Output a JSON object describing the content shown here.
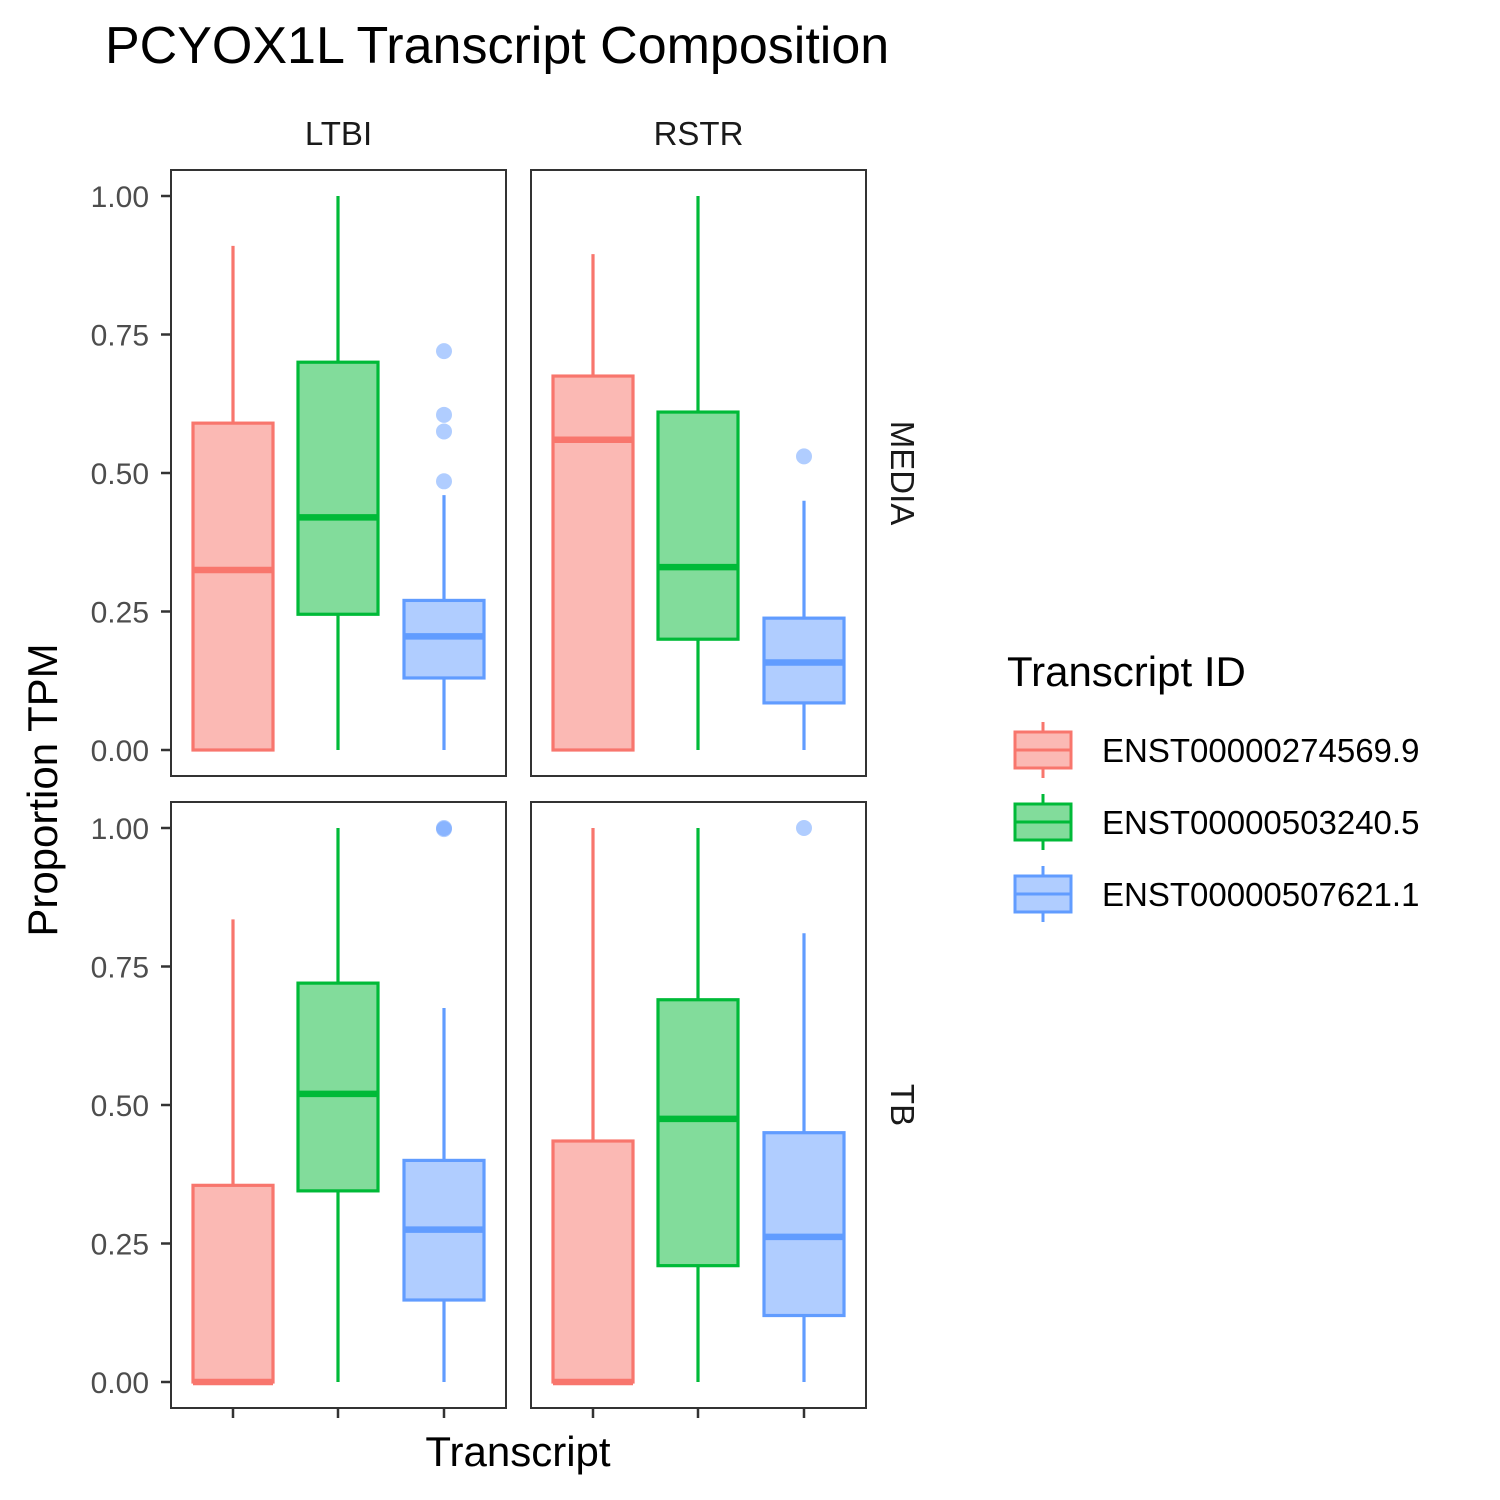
{
  "chart_data": {
    "type": "boxplot",
    "title": "PCYOX1L Transcript Composition",
    "xlabel": "Transcript",
    "ylabel": "Proportion TPM",
    "ylim": [
      0,
      1
    ],
    "yticks": [
      "0.00",
      "0.25",
      "0.50",
      "0.75",
      "1.00"
    ],
    "facet_cols": [
      "LTBI",
      "RSTR"
    ],
    "facet_rows": [
      "MEDIA",
      "TB"
    ],
    "legend": {
      "title": "Transcript ID",
      "position": "right",
      "items": [
        {
          "label": "ENST00000274569.9",
          "color": "#F8766D",
          "fill": "#FBB9B4"
        },
        {
          "label": "ENST00000503240.5",
          "color": "#00BA38",
          "fill": "#82DC9B"
        },
        {
          "label": "ENST00000507621.1",
          "color": "#619CFF",
          "fill": "#B0CDFF"
        }
      ]
    },
    "panels": [
      {
        "row": "MEDIA",
        "col": "LTBI",
        "boxes": [
          {
            "series": 0,
            "min": 0.0,
            "q1": 0.0,
            "median": 0.325,
            "q3": 0.59,
            "max": 0.91,
            "outliers": []
          },
          {
            "series": 1,
            "min": 0.0,
            "q1": 0.245,
            "median": 0.42,
            "q3": 0.7,
            "max": 1.0,
            "outliers": []
          },
          {
            "series": 2,
            "min": 0.0,
            "q1": 0.13,
            "median": 0.205,
            "q3": 0.27,
            "max": 0.46,
            "outliers": [
              0.72,
              0.605,
              0.575,
              0.485
            ]
          }
        ]
      },
      {
        "row": "MEDIA",
        "col": "RSTR",
        "boxes": [
          {
            "series": 0,
            "min": 0.0,
            "q1": 0.0,
            "median": 0.56,
            "q3": 0.675,
            "max": 0.895,
            "outliers": []
          },
          {
            "series": 1,
            "min": 0.0,
            "q1": 0.2,
            "median": 0.33,
            "q3": 0.61,
            "max": 1.0,
            "outliers": []
          },
          {
            "series": 2,
            "min": 0.0,
            "q1": 0.085,
            "median": 0.158,
            "q3": 0.238,
            "max": 0.45,
            "outliers": [
              0.53
            ]
          }
        ]
      },
      {
        "row": "TB",
        "col": "LTBI",
        "boxes": [
          {
            "series": 0,
            "min": 0.0,
            "q1": 0.0,
            "median": 0.0,
            "q3": 0.355,
            "max": 0.835,
            "outliers": []
          },
          {
            "series": 1,
            "min": 0.0,
            "q1": 0.345,
            "median": 0.52,
            "q3": 0.72,
            "max": 1.0,
            "outliers": []
          },
          {
            "series": 2,
            "min": 0.0,
            "q1": 0.148,
            "median": 0.275,
            "q3": 0.4,
            "max": 0.675,
            "outliers": [
              1.0,
              0.998
            ]
          }
        ]
      },
      {
        "row": "TB",
        "col": "RSTR",
        "boxes": [
          {
            "series": 0,
            "min": 0.0,
            "q1": 0.0,
            "median": 0.0,
            "q3": 0.435,
            "max": 1.0,
            "outliers": []
          },
          {
            "series": 1,
            "min": 0.0,
            "q1": 0.21,
            "median": 0.475,
            "q3": 0.69,
            "max": 1.0,
            "outliers": []
          },
          {
            "series": 2,
            "min": 0.0,
            "q1": 0.12,
            "median": 0.262,
            "q3": 0.45,
            "max": 0.81,
            "outliers": [
              1.0
            ]
          }
        ]
      }
    ]
  }
}
